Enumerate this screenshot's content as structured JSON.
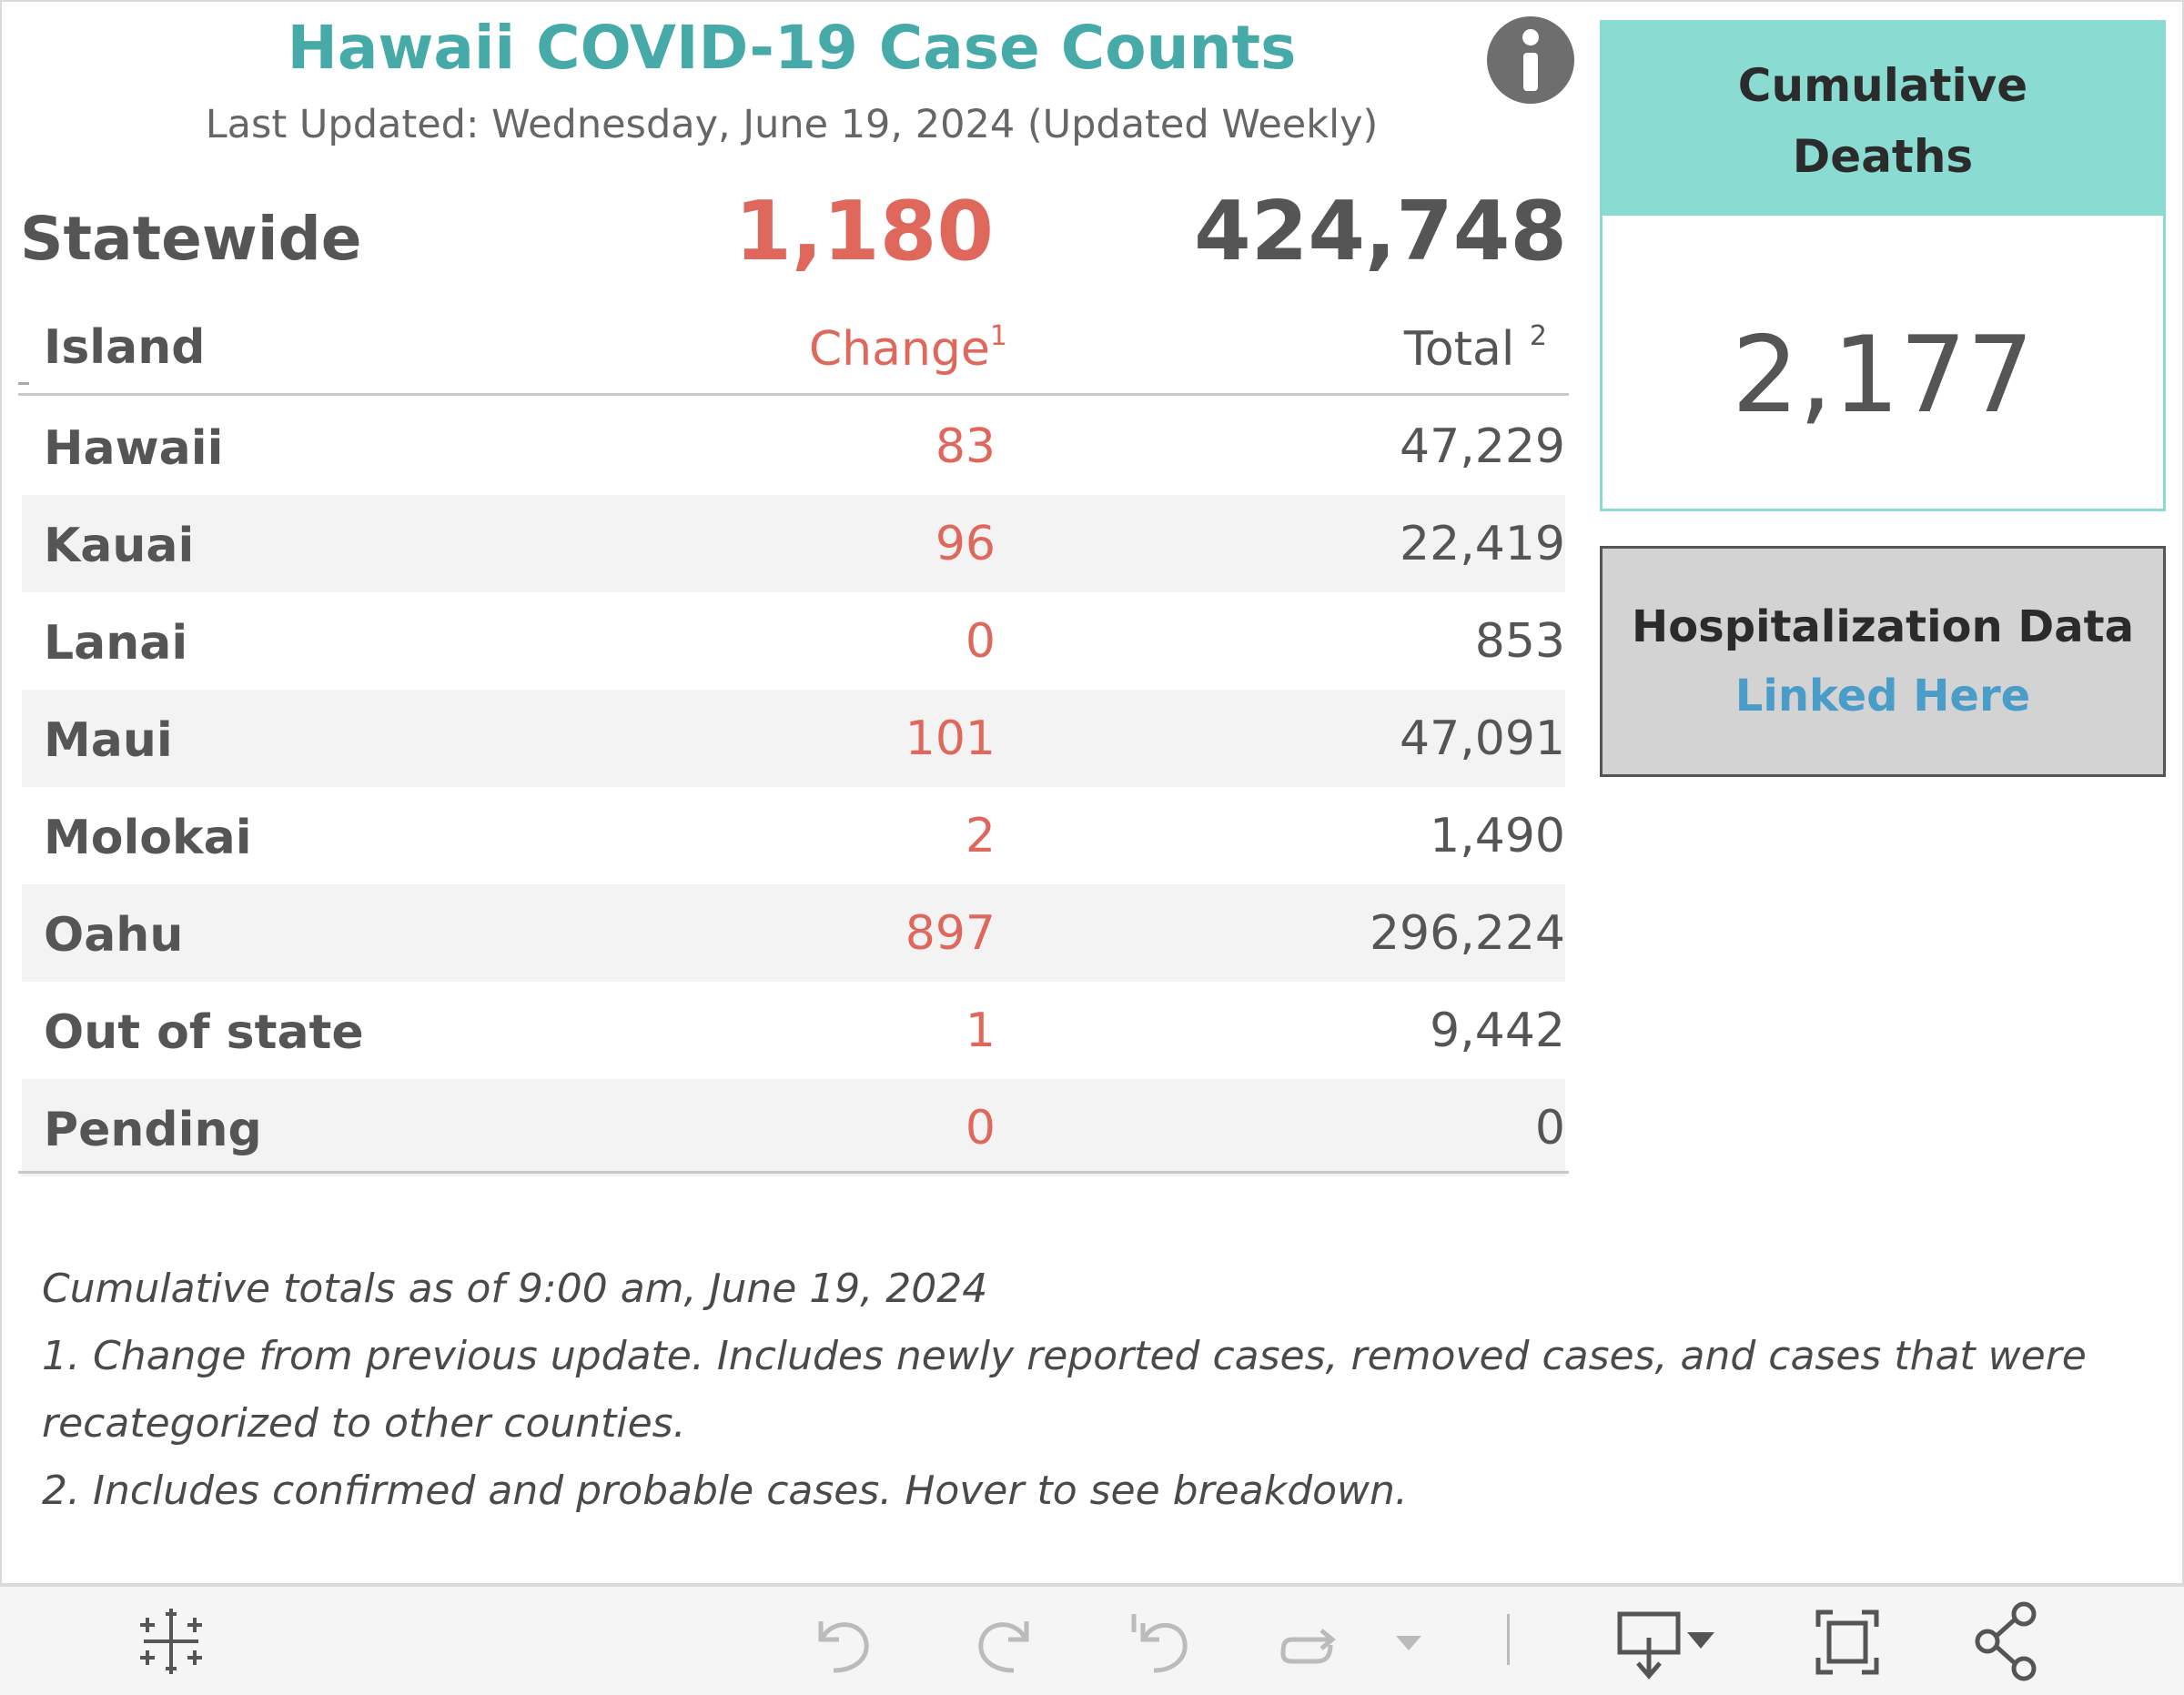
{
  "header": {
    "title": "Hawaii COVID-19 Case Counts",
    "last_updated": "Last Updated: Wednesday, June 19, 2024 (Updated Weekly)",
    "info_icon": "info-icon"
  },
  "statewide": {
    "label": "Statewide",
    "change": "1,180",
    "total": "424,748"
  },
  "table": {
    "columns": {
      "island": "Island",
      "change": "Change",
      "change_sup": "1",
      "total": "Total",
      "total_sup": "2"
    },
    "rows": [
      {
        "island": "Hawaii",
        "change": "83",
        "total": "47,229"
      },
      {
        "island": "Kauai",
        "change": "96",
        "total": "22,419"
      },
      {
        "island": "Lanai",
        "change": "0",
        "total": "853"
      },
      {
        "island": "Maui",
        "change": "101",
        "total": "47,091"
      },
      {
        "island": "Molokai",
        "change": "2",
        "total": "1,490"
      },
      {
        "island": "Oahu",
        "change": "897",
        "total": "296,224"
      },
      {
        "island": "Out of state",
        "change": "1",
        "total": "9,442"
      },
      {
        "island": "Pending",
        "change": "0",
        "total": "0"
      }
    ]
  },
  "deaths": {
    "title_line1": "Cumulative",
    "title_line2": "Deaths",
    "value": "2,177"
  },
  "hospitalization": {
    "title": "Hospitalization Data",
    "link": "Linked Here"
  },
  "footnotes": [
    "Cumulative totals as of 9:00 am, June 19, 2024",
    "1. Change from previous update. Includes newly reported cases, removed cases, and cases that were",
    "recategorized to other counties.",
    "2. Includes confirmed and probable cases. Hover to see breakdown."
  ],
  "colors": {
    "title": "#45aaa8",
    "change": "#e0675b",
    "deaths_header": "#8adcd3",
    "link": "#4a9dc9",
    "hosp_bg": "#d3d3d3"
  },
  "toolbar": {
    "icons": [
      "tableau-logo-icon",
      "undo-icon",
      "redo-icon",
      "revert-icon",
      "refresh-icon",
      "pause-dropdown-icon",
      "download-icon",
      "fullscreen-icon",
      "share-icon"
    ]
  }
}
